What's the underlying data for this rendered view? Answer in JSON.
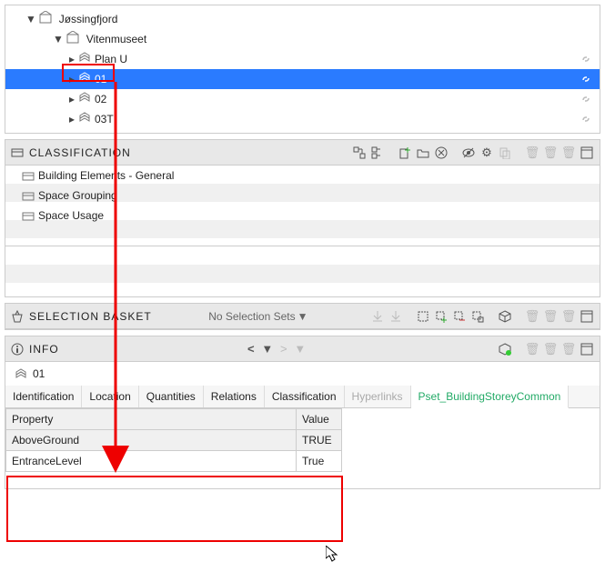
{
  "tree": {
    "root": {
      "label": "Jøssingfjord"
    },
    "child": {
      "label": "Vitenmuseet"
    },
    "leaves": [
      {
        "label": "Plan U",
        "link": true
      },
      {
        "label": "01",
        "selected": true,
        "link": true
      },
      {
        "label": "02",
        "link": true
      },
      {
        "label": "03T",
        "link": true
      }
    ]
  },
  "classification": {
    "title": "CLASSIFICATION",
    "items": [
      "Building Elements - General",
      "Space Grouping",
      "Space Usage"
    ]
  },
  "basket": {
    "title": "SELECTION BASKET",
    "noneText": "No Selection Sets"
  },
  "info": {
    "title": "INFO",
    "object": "01",
    "tabs": [
      "Identification",
      "Location",
      "Quantities",
      "Relations",
      "Classification",
      "Hyperlinks",
      "Pset_BuildingStoreyCommon"
    ],
    "activeTab": "Pset_BuildingStoreyCommon",
    "dimTab": "Hyperlinks",
    "table": {
      "headers": [
        "Property",
        "Value"
      ],
      "rows": [
        [
          "AboveGround",
          "TRUE"
        ],
        [
          "EntranceLevel",
          "True"
        ]
      ]
    }
  },
  "colors": {
    "select": "#2a7bff",
    "red": "#e00"
  }
}
